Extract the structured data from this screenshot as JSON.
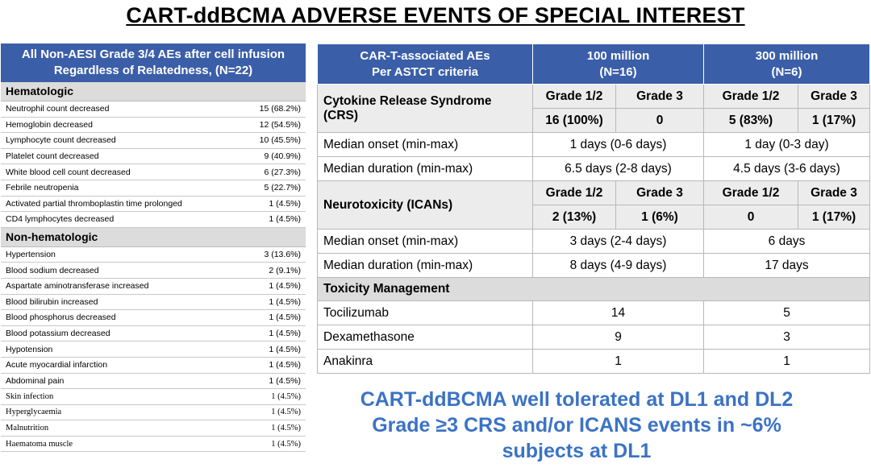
{
  "title": "CART-ddBCMA ADVERSE EVENTS OF SPECIAL INTEREST",
  "left_table": {
    "header_line1": "All Non-AESI Grade 3/4 AEs after cell infusion",
    "header_line2": "Regardless of Relatedness, (N=22)",
    "hematologic": {
      "label": "Hematologic",
      "rows": [
        {
          "name": "Neutrophil count decreased",
          "value": "15 (68.2%)"
        },
        {
          "name": "Hemoglobin decreased",
          "value": "12 (54.5%)"
        },
        {
          "name": "Lymphocyte count decreased",
          "value": "10 (45.5%)"
        },
        {
          "name": "Platelet count decreased",
          "value": "9 (40.9%)"
        },
        {
          "name": "White blood cell count decreased",
          "value": "6 (27.3%)"
        },
        {
          "name": "Febrile neutropenia",
          "value": "5 (22.7%)"
        },
        {
          "name": "Activated partial thromboplastin time prolonged",
          "value": "1 (4.5%)"
        },
        {
          "name": "CD4 lymphocytes decreased",
          "value": "1 (4.5%)"
        }
      ]
    },
    "nonhematologic": {
      "label": "Non-hematologic",
      "rows": [
        {
          "name": "Hypertension",
          "value": "3 (13.6%)"
        },
        {
          "name": "Blood sodium decreased",
          "value": "2 (9.1%)"
        },
        {
          "name": "Aspartate aminotransferase increased",
          "value": "1 (4.5%)"
        },
        {
          "name": "Blood bilirubin increased",
          "value": "1 (4.5%)"
        },
        {
          "name": "Blood phosphorus decreased",
          "value": "1 (4.5%)"
        },
        {
          "name": "Blood potassium decreased",
          "value": "1 (4.5%)"
        },
        {
          "name": "Hypotension",
          "value": "1 (4.5%)"
        },
        {
          "name": "Acute myocardial infarction",
          "value": "1 (4.5%)"
        },
        {
          "name": "Abdominal pain",
          "value": "1 (4.5%)"
        },
        {
          "name": "Skin infection",
          "value": "1 (4.5%)"
        },
        {
          "name": "Hyperglycaemia",
          "value": "1 (4.5%)"
        },
        {
          "name": "Malnutrition",
          "value": "1 (4.5%)"
        },
        {
          "name": "Haematoma muscle",
          "value": "1 (4.5%)"
        }
      ]
    }
  },
  "right_table": {
    "header": {
      "col1_line1": "CAR-T-associated AEs",
      "col1_line2": "Per ASTCT criteria",
      "col2_line1": "100 million",
      "col2_line2": "(N=16)",
      "col3_line1": "300 million",
      "col3_line2": "(N=6)"
    },
    "crs": {
      "label_line1": "Cytokine Release Syndrome",
      "label_line2": "(CRS)",
      "dl1_g12_label": "Grade 1/2",
      "dl1_g3_label": "Grade 3",
      "dl2_g12_label": "Grade  1/2",
      "dl2_g3_label": "Grade 3",
      "dl1_g12": "16 (100%)",
      "dl1_g3": "0",
      "dl2_g12": "5  (83%)",
      "dl2_g3": "1 (17%)",
      "onset_label": "Median onset (min-max)",
      "onset_dl1": "1 days (0-6 days)",
      "onset_dl2": "1 day (0-3 day)",
      "duration_label": "Median duration (min-max)",
      "duration_dl1": "6.5 days (2-8 days)",
      "duration_dl2": "4.5 days (3-6 days)"
    },
    "icans": {
      "label": "Neurotoxicity (ICANs)",
      "dl1_g12_label": "Grade 1/2",
      "dl1_g3_label": "Grade 3",
      "dl2_g12_label": "Grade 1/2",
      "dl2_g3_label": "Grade 3",
      "dl1_g12": "2 (13%)",
      "dl1_g3": "1 (6%)",
      "dl2_g12": "0",
      "dl2_g3": "1 (17%)",
      "onset_label": "Median onset (min-max)",
      "onset_dl1": "3 days (2-4 days)",
      "onset_dl2": "6 days",
      "duration_label": "Median duration (min-max)",
      "duration_dl1": "8 days (4-9 days)",
      "duration_dl2": "17 days"
    },
    "toxicity": {
      "label": "Toxicity Management",
      "rows": [
        {
          "name": "Tocilizumab",
          "dl1": "14",
          "dl2": "5"
        },
        {
          "name": "Dexamethasone",
          "dl1": "9",
          "dl2": "3"
        },
        {
          "name": "Anakinra",
          "dl1": "1",
          "dl2": "1"
        }
      ]
    }
  },
  "tagline": {
    "line1": "CART-ddBCMA well tolerated at DL1 and DL2",
    "line2": "Grade ≥3 CRS and/or ICANS events in ~6%",
    "line3": "subjects at DL1"
  },
  "colors": {
    "header_blue": "#3b5ea8",
    "tagline_blue": "#3b73c4"
  }
}
